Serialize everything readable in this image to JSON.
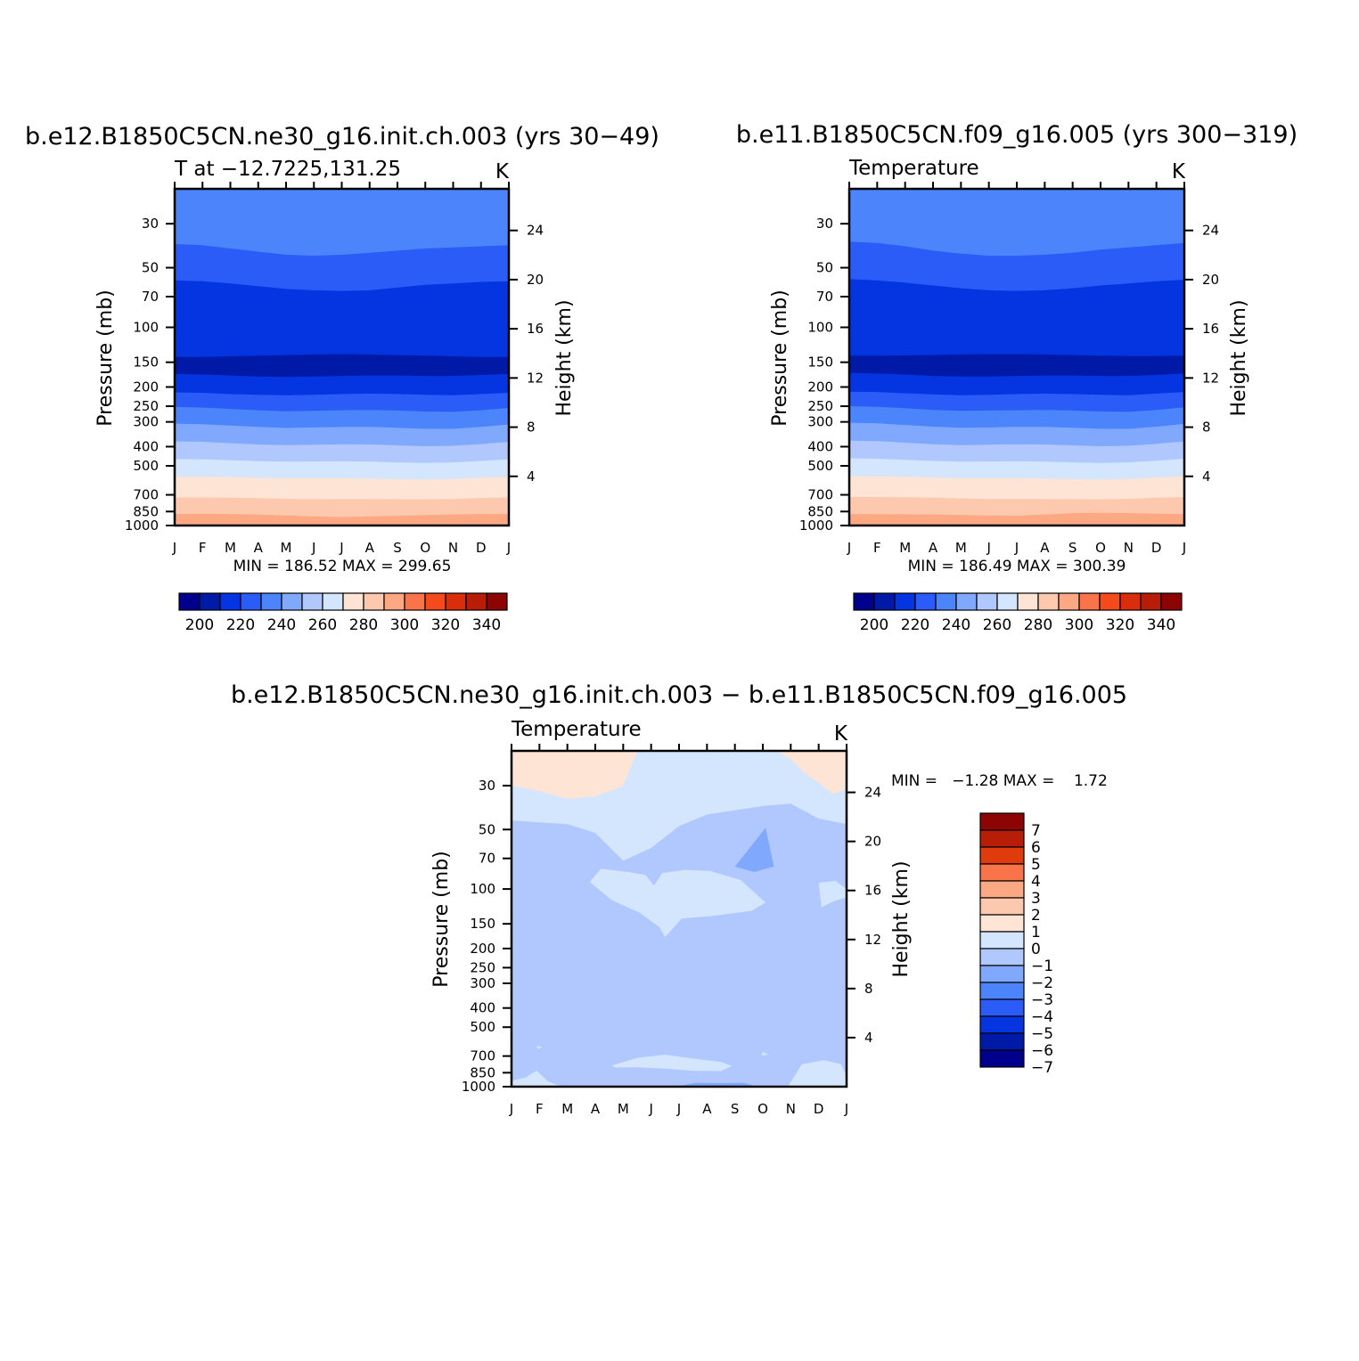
{
  "panels": [
    {
      "title": "b.e12.B1850C5CN.ne30_g16.init.ch.003 (yrs 30−49)",
      "left_label": "T at −12.7225,131.25",
      "right_label": "K",
      "ylabel": "Pressure (mb)",
      "y2label": "Height (km)",
      "minmax": "MIN = 186.52 MAX = 299.65",
      "cbar_labels": [
        "200",
        "220",
        "240",
        "260",
        "280",
        "300",
        "320",
        "340"
      ]
    },
    {
      "title": "b.e11.B1850C5CN.f09_g16.005 (yrs 300−319)",
      "left_label": "Temperature",
      "right_label": "K",
      "ylabel": "Pressure (mb)",
      "y2label": "Height (km)",
      "minmax": "MIN = 186.49 MAX = 300.39",
      "cbar_labels": [
        "200",
        "220",
        "240",
        "260",
        "280",
        "300",
        "320",
        "340"
      ]
    },
    {
      "title": "b.e12.B1850C5CN.ne30_g16.init.ch.003 − b.e11.B1850C5CN.f09_g16.005",
      "left_label": "Temperature",
      "right_label": "K",
      "ylabel": "Pressure (mb)",
      "y2label": "Height (km)",
      "minmax": "MIN =   −1.28 MAX =    1.72",
      "cbar_labels": [
        "7",
        "6",
        "5",
        "4",
        "3",
        "2",
        "1",
        "0",
        "−1",
        "−2",
        "−3",
        "−4",
        "−5",
        "−6",
        "−7"
      ]
    }
  ],
  "colors": {
    "temp_palette": [
      "#00008c",
      "#001aa8",
      "#0535e0",
      "#2c5cf7",
      "#4c84fb",
      "#80a8fc",
      "#b0c8fd",
      "#d4e6fe",
      "#fee4d4",
      "#fdc9ae",
      "#fba883",
      "#f9744a",
      "#f54a1c",
      "#d82e0c",
      "#b81d07",
      "#8c0404"
    ],
    "diff_palette": [
      "#8c0404",
      "#b81d07",
      "#e03b0b",
      "#f9744a",
      "#fba883",
      "#fdc9ae",
      "#fee4d4",
      "#d4e6fe",
      "#b0c8fd",
      "#80a8fc",
      "#4c84fb",
      "#2c5cf7",
      "#0535e0",
      "#001aa8",
      "#00008c"
    ]
  },
  "chart_data": [
    {
      "type": "contour",
      "title": "b.e12.B1850C5CN.ne30_g16.init.ch.003 (yrs 30−49)",
      "xlabel": "",
      "ylabel": "Pressure (mb)",
      "y2label": "Height (km)",
      "units": "K",
      "x_ticks": [
        "J",
        "F",
        "M",
        "A",
        "M",
        "J",
        "J",
        "A",
        "S",
        "O",
        "N",
        "D",
        "J"
      ],
      "y_ticks": [
        30,
        50,
        70,
        100,
        150,
        200,
        250,
        300,
        400,
        500,
        700,
        850,
        1000
      ],
      "y_range_mb": [
        20,
        1000
      ],
      "y_scale": "log",
      "y2_ticks": [
        4,
        8,
        12,
        16,
        20,
        24
      ],
      "levels": [
        190,
        200,
        210,
        220,
        230,
        240,
        250,
        260,
        270,
        280,
        290,
        300,
        310,
        320,
        330,
        340
      ],
      "min": 186.52,
      "max": 299.65,
      "band_boundaries_mb": [
        {
          "below_K": 210,
          "above_K": 220,
          "p_mb": [
            38,
            38.5,
            40,
            41.5,
            43,
            43.5,
            43,
            42,
            41,
            40,
            39.5,
            39,
            38.5
          ]
        },
        {
          "below_K": 200,
          "above_K": 210,
          "p_mb": [
            58,
            58.5,
            60,
            62,
            64,
            65,
            65.5,
            65,
            63,
            61,
            60,
            59,
            58.5
          ]
        },
        {
          "below_K": 190,
          "above_K": 200,
          "p_mb": [
            141,
            141,
            140,
            139,
            138,
            137,
            136.5,
            137,
            138,
            139,
            140,
            141,
            141
          ]
        },
        {
          "below_K": 200,
          "above_K": 210,
          "p_mb": [
            172,
            173,
            175,
            177,
            178,
            177,
            176,
            175,
            175,
            176,
            176,
            174,
            172
          ]
        },
        {
          "below_K": 210,
          "above_K": 220,
          "p_mb": [
            213,
            214,
            217,
            219,
            220,
            219,
            217,
            216,
            217,
            219,
            220,
            217,
            214
          ]
        },
        {
          "below_K": 220,
          "above_K": 230,
          "p_mb": [
            252,
            254,
            258,
            262,
            265,
            264,
            262,
            261,
            263,
            266,
            267,
            262,
            255
          ]
        },
        {
          "below_K": 230,
          "above_K": 240,
          "p_mb": [
            306,
            308,
            313,
            318,
            322,
            320,
            318,
            318,
            321,
            325,
            325,
            318,
            309
          ]
        },
        {
          "below_K": 240,
          "above_K": 250,
          "p_mb": [
            376,
            378,
            384,
            390,
            393,
            391,
            389,
            390,
            394,
            398,
            396,
            388,
            378
          ]
        },
        {
          "below_K": 250,
          "above_K": 260,
          "p_mb": [
            462,
            463,
            468,
            473,
            476,
            475,
            474,
            476,
            480,
            483,
            480,
            472,
            463
          ]
        },
        {
          "below_K": 260,
          "above_K": 270,
          "p_mb": [
            567,
            568,
            570,
            574,
            578,
            578,
            578,
            580,
            584,
            586,
            582,
            574,
            567
          ]
        },
        {
          "below_K": 270,
          "above_K": 280,
          "p_mb": [
            722,
            722,
            724,
            728,
            733,
            737,
            735,
            735,
            737,
            738,
            734,
            726,
            722
          ]
        },
        {
          "below_K": 280,
          "above_K": 290,
          "p_mb": [
            875,
            873,
            875,
            880,
            890,
            900,
            906,
            900,
            893,
            886,
            880,
            875,
            875
          ]
        }
      ]
    },
    {
      "type": "contour",
      "title": "b.e11.B1850C5CN.f09_g16.005 (yrs 300−319)",
      "xlabel": "",
      "ylabel": "Pressure (mb)",
      "y2label": "Height (km)",
      "units": "K",
      "x_ticks": [
        "J",
        "F",
        "M",
        "A",
        "M",
        "J",
        "J",
        "A",
        "S",
        "O",
        "N",
        "D",
        "J"
      ],
      "y_ticks": [
        30,
        50,
        70,
        100,
        150,
        200,
        250,
        300,
        400,
        500,
        700,
        850,
        1000
      ],
      "y_range_mb": [
        20,
        1000
      ],
      "y_scale": "log",
      "y2_ticks": [
        4,
        8,
        12,
        16,
        20,
        24
      ],
      "levels": [
        190,
        200,
        210,
        220,
        230,
        240,
        250,
        260,
        270,
        280,
        290,
        300,
        310,
        320,
        330,
        340
      ],
      "min": 186.49,
      "max": 300.39,
      "band_boundaries_mb": [
        {
          "below_K": 210,
          "above_K": 220,
          "p_mb": [
            37,
            37.5,
            39,
            41,
            42.5,
            43.5,
            43.5,
            43,
            42,
            40.5,
            39.5,
            38.5,
            37.5
          ]
        },
        {
          "below_K": 200,
          "above_K": 210,
          "p_mb": [
            57,
            58,
            59.5,
            61.5,
            63.5,
            65,
            65.5,
            65,
            63.5,
            61.5,
            60,
            58.5,
            57.5
          ]
        },
        {
          "below_K": 190,
          "above_K": 200,
          "p_mb": [
            139,
            139,
            138.5,
            138,
            137,
            136.5,
            136.5,
            137,
            138,
            139,
            139.5,
            139.5,
            139
          ]
        },
        {
          "below_K": 200,
          "above_K": 210,
          "p_mb": [
            170,
            171,
            173,
            176,
            177,
            177,
            176,
            175,
            175,
            176,
            176,
            174,
            171
          ]
        },
        {
          "below_K": 210,
          "above_K": 220,
          "p_mb": [
            211,
            212,
            215,
            218,
            220,
            219,
            217,
            216,
            217,
            219,
            220,
            216,
            212
          ]
        },
        {
          "below_K": 220,
          "above_K": 230,
          "p_mb": [
            250,
            252,
            256,
            261,
            264,
            263,
            262,
            261,
            263,
            266,
            267,
            261,
            253
          ]
        },
        {
          "below_K": 230,
          "above_K": 240,
          "p_mb": [
            303,
            305,
            311,
            317,
            321,
            320,
            318,
            318,
            321,
            325,
            325,
            317,
            307
          ]
        },
        {
          "below_K": 240,
          "above_K": 250,
          "p_mb": [
            373,
            375,
            382,
            389,
            393,
            391,
            389,
            390,
            394,
            398,
            396,
            387,
            376
          ]
        },
        {
          "below_K": 250,
          "above_K": 260,
          "p_mb": [
            458,
            460,
            466,
            472,
            476,
            475,
            474,
            476,
            480,
            483,
            480,
            471,
            460
          ]
        },
        {
          "below_K": 260,
          "above_K": 270,
          "p_mb": [
            564,
            565,
            568,
            573,
            578,
            578,
            578,
            580,
            584,
            586,
            582,
            573,
            565
          ]
        },
        {
          "below_K": 270,
          "above_K": 280,
          "p_mb": [
            718,
            718,
            720,
            724,
            730,
            734,
            734,
            735,
            737,
            738,
            733,
            724,
            718
          ]
        },
        {
          "below_K": 280,
          "above_K": 290,
          "p_mb": [
            875,
            876,
            878,
            880,
            884,
            890,
            893,
            880,
            866,
            862,
            866,
            872,
            875
          ]
        }
      ]
    },
    {
      "type": "contour",
      "title": "b.e12.B1850C5CN.ne30_g16.init.ch.003 − b.e11.B1850C5CN.f09_g16.005",
      "xlabel": "",
      "ylabel": "Pressure (mb)",
      "y2label": "Height (km)",
      "units": "K",
      "x_ticks": [
        "J",
        "F",
        "M",
        "A",
        "M",
        "J",
        "J",
        "A",
        "S",
        "O",
        "N",
        "D",
        "J"
      ],
      "y_ticks": [
        30,
        50,
        70,
        100,
        150,
        200,
        250,
        300,
        400,
        500,
        700,
        850,
        1000
      ],
      "y_range_mb": [
        20,
        1000
      ],
      "y_scale": "log",
      "y2_ticks": [
        4,
        8,
        12,
        16,
        20,
        24
      ],
      "levels": [
        -7,
        -6,
        -5,
        -4,
        -3,
        -2,
        -1,
        0,
        1,
        2,
        3,
        4,
        5,
        6,
        7
      ],
      "min": -1.28,
      "max": 1.72,
      "background_range_K": [
        -1,
        0
      ],
      "regions": [
        {
          "range_K": [
            0,
            1
          ],
          "x_month": [
            0,
            0,
            1,
            2,
            3,
            4,
            5,
            6,
            7,
            8,
            9,
            10,
            11,
            12,
            12,
            11,
            10,
            9,
            8,
            7,
            6,
            5,
            4,
            3,
            2,
            1
          ],
          "p_mb": [
            20,
            45,
            46,
            47,
            52,
            72,
            62,
            48,
            42,
            40,
            38,
            37,
            44,
            47,
            20,
            20,
            20,
            20,
            20,
            20,
            20,
            20,
            20,
            20,
            20,
            20
          ]
        },
        {
          "range_K": [
            1,
            2
          ],
          "x_month": [
            0,
            0,
            1,
            2,
            3,
            4,
            4.5,
            9.5,
            10,
            10.5,
            11,
            11.5,
            12,
            12,
            0
          ],
          "p_mb": [
            20,
            30,
            32,
            35,
            34,
            30,
            20,
            20,
            22,
            26,
            29,
            33,
            31,
            20,
            20
          ]
        },
        {
          "range_K": [
            0,
            1
          ],
          "x_month": [
            2.8,
            3.2,
            4.2,
            4.8,
            5.1,
            5.4,
            6.2,
            7.1,
            8.2,
            9.1,
            8.6,
            7.2,
            6.1,
            5.7,
            5.5,
            5.3,
            4.6,
            3.6
          ],
          "p_mb": [
            92,
            79,
            82,
            85,
            96,
            83,
            80,
            81,
            90,
            117,
            129,
            137,
            141,
            163,
            175,
            156,
            132,
            114
          ]
        },
        {
          "range_K": [
            0,
            1
          ],
          "x_month": [
            11.0,
            11.6,
            12,
            12,
            11.5,
            11.1
          ],
          "p_mb": [
            93,
            91,
            100,
            110,
            116,
            124
          ]
        },
        {
          "range_K": [
            -2,
            -1
          ],
          "x_month": [
            8.0,
            9.1,
            9.4,
            8.7
          ],
          "p_mb": [
            77,
            49,
            77,
            82
          ]
        },
        {
          "range_K": [
            0,
            1
          ],
          "x_month": [
            3.6,
            4.5,
            5.5,
            6.5,
            7.5,
            7.9,
            7.5,
            6.5,
            5.5,
            4.5,
            3.7
          ],
          "p_mb": [
            780,
            715,
            688,
            721,
            749,
            785,
            834,
            831,
            810,
            798,
            800
          ]
        },
        {
          "range_K": [
            0,
            1
          ],
          "x_month": [
            9.0,
            9.2,
            8.95
          ],
          "p_mb": [
            665,
            690,
            695
          ]
        },
        {
          "range_K": [
            0,
            1
          ],
          "x_month": [
            0.9,
            1.1,
            0.95
          ],
          "p_mb": [
            620,
            630,
            645
          ]
        },
        {
          "range_K": [
            0,
            1
          ],
          "x_month": [
            0,
            0.5,
            0.9,
            1.3,
            1.8,
            0,
            0
          ],
          "p_mb": [
            935,
            900,
            830,
            940,
            1000,
            1000,
            935
          ]
        },
        {
          "range_K": [
            0,
            1
          ],
          "x_month": [
            9.9,
            10.4,
            11.2,
            11.8,
            12,
            12,
            9.9
          ],
          "p_mb": [
            1000,
            770,
            735,
            770,
            880,
            1000,
            1000
          ]
        },
        {
          "range_K": [
            -2,
            -1
          ],
          "x_month": [
            5.9,
            6.6,
            7.5,
            8.3,
            8.8,
            5.9
          ],
          "p_mb": [
            1000,
            955,
            960,
            955,
            1000,
            1000
          ]
        }
      ]
    }
  ]
}
